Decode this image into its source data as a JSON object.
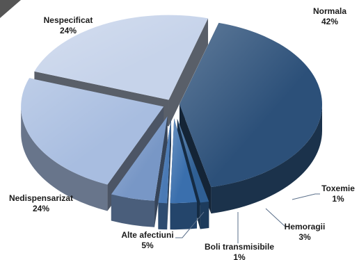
{
  "chart_data": {
    "type": "pie",
    "style": "3d-exploded",
    "title": "",
    "unit": "%",
    "legend": "none",
    "slices": [
      {
        "name": "Normala",
        "value": 42,
        "label": "42%",
        "color": "#2c5079"
      },
      {
        "name": "Toxemie",
        "value": 1,
        "label": "1%",
        "color": "#2f5f94"
      },
      {
        "name": "Hemoragii",
        "value": 3,
        "label": "3%",
        "color": "#3a6fad"
      },
      {
        "name": "Boli transmisibile",
        "value": 1,
        "label": "1%",
        "color": "#4a7ab5"
      },
      {
        "name": "Alte afectiuni",
        "value": 5,
        "label": "5%",
        "color": "#7897c6"
      },
      {
        "name": "Nedispensarizat",
        "value": 24,
        "label": "24%",
        "color": "#a8bde0"
      },
      {
        "name": "Nespecificat",
        "value": 24,
        "label": "24%",
        "color": "#c6d3ea"
      }
    ]
  }
}
